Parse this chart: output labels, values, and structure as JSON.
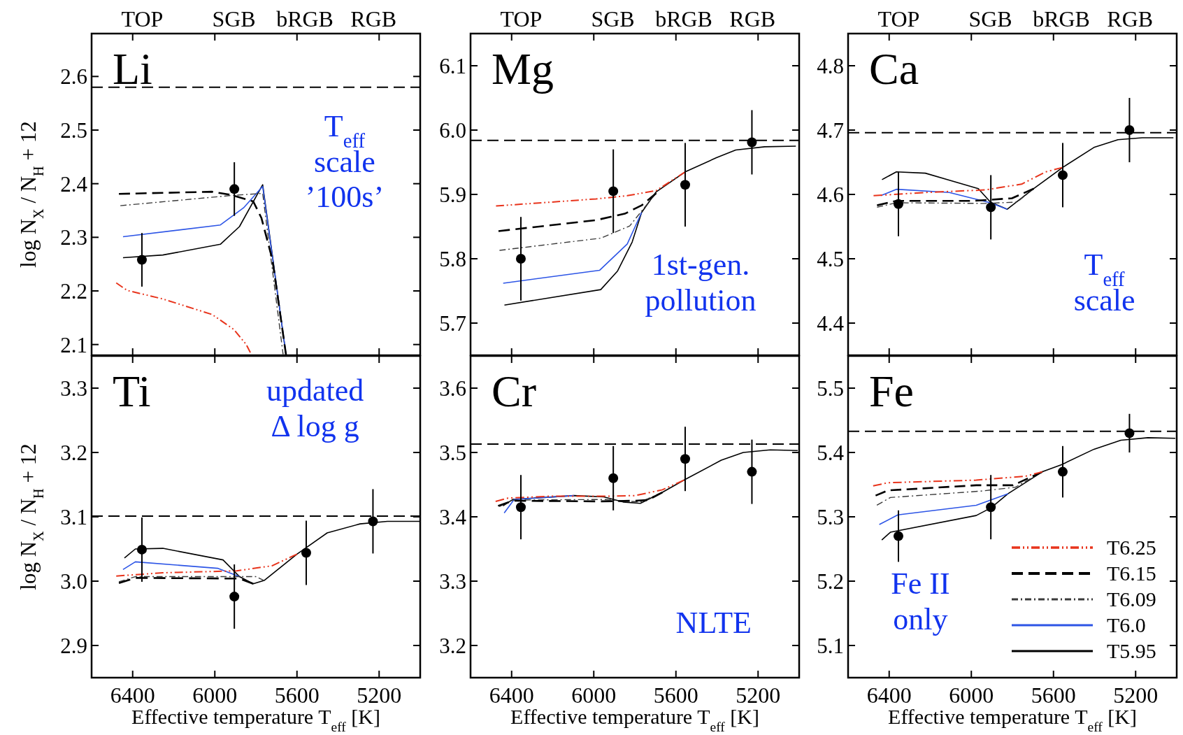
{
  "chart_data": [
    {
      "type": "line",
      "title": "Li",
      "annotations": [
        "T$_{eff}$\nscale\n’100s’",
        "TOP",
        "SGB",
        "bRGB",
        "RGB"
      ],
      "ylabel": "log N$_{X}$ / N$_{H}$ + 12",
      "xlim": [
        6600,
        5000
      ],
      "xticks": [
        6400,
        6000,
        5600,
        5200
      ],
      "ylim": [
        2.08,
        2.68
      ],
      "yticks": [
        2.1,
        2.2,
        2.3,
        2.4,
        2.5,
        2.6
      ],
      "tick_labels": "y",
      "legend": false,
      "ref_lines": [
        {
          "axis": "y",
          "value": 2.58,
          "color": "#000000",
          "line_style": "dashed"
        }
      ],
      "series": [
        {
          "color": "#e8341c",
          "line_style": "dashdotdot",
          "x": [
            6480,
            6427,
            6253,
            6013,
            5907,
            5847,
            5827
          ],
          "values": [
            2.215,
            2.201,
            2.185,
            2.156,
            2.128,
            2.1,
            2.085
          ]
        },
        {
          "color": "#000000",
          "line_style": "dashed",
          "x": [
            6467,
            6013,
            5920,
            5813,
            5773,
            5720,
            5653
          ],
          "values": [
            2.381,
            2.385,
            2.379,
            2.367,
            2.336,
            2.259,
            2.08
          ]
        },
        {
          "color": "#3a3a3a",
          "line_style": "dashdot",
          "x": [
            6460,
            5920,
            5767,
            5667
          ],
          "values": [
            2.359,
            2.378,
            2.382,
            2.08
          ]
        },
        {
          "color": "#2d55e6",
          "line_style": "solid",
          "x": [
            6447,
            5973,
            5860,
            5767,
            5653
          ],
          "values": [
            2.301,
            2.323,
            2.355,
            2.395,
            2.08
          ]
        },
        {
          "color": "#000000",
          "line_style": "solid",
          "x": [
            6447,
            6253,
            5973,
            5880,
            5767,
            5653
          ],
          "values": [
            2.262,
            2.267,
            2.287,
            2.32,
            2.398,
            2.08
          ]
        },
        {
          "type": "scatter",
          "color": "#000000",
          "marker": "circle",
          "x": [
            6355,
            5905
          ],
          "values": [
            2.258,
            2.39
          ],
          "errors": [
            0.05,
            0.05
          ]
        }
      ]
    },
    {
      "type": "line",
      "title": "Mg",
      "annotations": [
        "1st-gen.\npollution",
        "TOP",
        "SGB",
        "bRGB",
        "RGB"
      ],
      "xlim": [
        6600,
        5000
      ],
      "xticks": [
        6400,
        6000,
        5600,
        5200
      ],
      "ylim": [
        5.65,
        6.15
      ],
      "yticks": [
        5.7,
        5.8,
        5.9,
        {
          "value": 6,
          "label": "6.0"
        },
        6.1
      ],
      "tick_labels": "y",
      "legend": false,
      "ref_lines": [
        {
          "axis": "y",
          "value": 5.984,
          "color": "#000000",
          "line_style": "dashed"
        }
      ],
      "series": [
        {
          "color": "#e8341c",
          "line_style": "dashdotdot",
          "x": [
            6476,
            5989,
            5837,
            5696,
            5555
          ],
          "values": [
            5.882,
            5.893,
            5.898,
            5.906,
            5.935
          ]
        },
        {
          "color": "#000000",
          "line_style": "dashed",
          "x": [
            6464,
            5989,
            5849,
            5767,
            5696
          ],
          "values": [
            5.843,
            5.86,
            5.87,
            5.883,
            5.902
          ]
        },
        {
          "color": "#3a3a3a",
          "line_style": "dashdot",
          "x": [
            6459,
            5966,
            5825,
            5755,
            5696
          ],
          "values": [
            5.813,
            5.832,
            5.851,
            5.879,
            5.902
          ]
        },
        {
          "color": "#2d55e6",
          "line_style": "solid",
          "x": [
            6441,
            5972,
            5837,
            5767
          ],
          "values": [
            5.762,
            5.782,
            5.823,
            5.872
          ]
        },
        {
          "color": "#000000",
          "line_style": "solid",
          "x": [
            6435,
            5966,
            5884,
            5813,
            5767,
            5696,
            5555,
            5403,
            5309,
            5168,
            5016
          ],
          "values": [
            5.728,
            5.752,
            5.781,
            5.826,
            5.872,
            5.904,
            5.935,
            5.957,
            5.969,
            5.974,
            5.975
          ]
        },
        {
          "type": "scatter",
          "color": "#000000",
          "marker": "circle",
          "x": [
            6355,
            5905,
            5555,
            5230
          ],
          "values": [
            5.8,
            5.905,
            5.915,
            5.981
          ],
          "errors": [
            0.065,
            0.065,
            0.065,
            0.05
          ]
        }
      ]
    },
    {
      "type": "line",
      "title": "Ca",
      "annotations": [
        "T$_{eff}$\nscale",
        "TOP",
        "SGB",
        "bRGB",
        "RGB"
      ],
      "xlim": [
        6600,
        5000
      ],
      "xticks": [
        6400,
        6000,
        5600,
        5200
      ],
      "ylim": [
        4.35,
        4.85
      ],
      "yticks": [
        4.4,
        4.5,
        4.6,
        4.7,
        4.8
      ],
      "tick_labels": "y",
      "legend": false,
      "ref_lines": [
        {
          "axis": "y",
          "value": 4.696,
          "color": "#000000",
          "line_style": "dashed"
        }
      ],
      "series": [
        {
          "color": "#e8341c",
          "line_style": "dashdotdot",
          "x": [
            6476,
            6224,
            5931,
            5755,
            5638,
            5555
          ],
          "values": [
            4.598,
            4.603,
            4.607,
            4.616,
            4.635,
            4.642
          ]
        },
        {
          "color": "#000000",
          "line_style": "dashed",
          "x": [
            6459,
            6365,
            5989,
            5802,
            5696
          ],
          "values": [
            4.583,
            4.59,
            4.59,
            4.594,
            4.609
          ]
        },
        {
          "color": "#3a3a3a",
          "line_style": "dashdot",
          "x": [
            6459,
            6365,
            5931,
            5778,
            5696
          ],
          "values": [
            4.58,
            4.587,
            4.586,
            4.588,
            4.609
          ]
        },
        {
          "color": "#2d55e6",
          "line_style": "solid",
          "x": [
            6441,
            6365,
            6107,
            5907,
            5825
          ],
          "values": [
            4.598,
            4.608,
            4.603,
            4.587,
            4.577
          ]
        },
        {
          "color": "#000000",
          "line_style": "solid",
          "x": [
            6435,
            6365,
            6224,
            5966,
            5907,
            5825,
            5696,
            5555,
            5403,
            5286,
            5168,
            5016
          ],
          "values": [
            4.623,
            4.635,
            4.633,
            4.609,
            4.588,
            4.577,
            4.609,
            4.642,
            4.673,
            4.685,
            4.688,
            4.688
          ]
        },
        {
          "type": "scatter",
          "color": "#000000",
          "marker": "circle",
          "x": [
            6355,
            5905,
            5555,
            5230
          ],
          "values": [
            4.585,
            4.58,
            4.63,
            4.7
          ],
          "errors": [
            0.05,
            0.05,
            0.05,
            0.05
          ]
        }
      ]
    },
    {
      "type": "line",
      "title": "Ti",
      "annotations": [
        "updated\nΔ log g"
      ],
      "ylabel": "log N$_{X}$ / N$_{H}$ + 12",
      "xlabel": "Effective temperature T$_{eff}$ [K]",
      "xlim": [
        6600,
        5000
      ],
      "xticks": [
        6400,
        6000,
        5600,
        5200
      ],
      "ylim": [
        2.85,
        3.35
      ],
      "yticks": [
        2.9,
        {
          "value": 3,
          "label": "3.0"
        },
        3.1,
        3.2,
        3.3
      ],
      "legend": false,
      "ref_lines": [
        {
          "axis": "y",
          "value": 3.101,
          "color": "#000000",
          "line_style": "dashed"
        }
      ],
      "series": [
        {
          "color": "#e8341c",
          "line_style": "dashdotdot",
          "x": [
            6480,
            6253,
            5893,
            5720,
            5600
          ],
          "values": [
            3.008,
            3.013,
            3.016,
            3.024,
            3.042
          ]
        },
        {
          "color": "#000000",
          "line_style": "dashed",
          "x": [
            6467,
            6387,
            5880,
            5813
          ],
          "values": [
            2.997,
            3.005,
            3.004,
            2.996
          ]
        },
        {
          "color": "#3a3a3a",
          "line_style": "dashdot",
          "x": [
            6467,
            6387,
            5800,
            5760
          ],
          "values": [
            2.999,
            3.007,
            3.007,
            3.001
          ]
        },
        {
          "color": "#2d55e6",
          "line_style": "solid",
          "x": [
            6447,
            6387,
            5987,
            5880
          ],
          "values": [
            3.018,
            3.03,
            3.02,
            3.007
          ]
        },
        {
          "color": "#000000",
          "line_style": "solid",
          "x": [
            6440,
            6387,
            6253,
            5960,
            5880,
            5813,
            5760,
            5600,
            5453,
            5293,
            5160,
            5000
          ],
          "values": [
            3.036,
            3.05,
            3.051,
            3.033,
            3.007,
            2.996,
            3.001,
            3.042,
            3.075,
            3.089,
            3.093,
            3.093
          ]
        },
        {
          "type": "scatter",
          "color": "#000000",
          "marker": "circle",
          "x": [
            6355,
            5905,
            5555,
            5230
          ],
          "values": [
            3.049,
            2.976,
            3.044,
            3.093
          ],
          "errors": [
            0.05,
            0.05,
            0.05,
            0.05
          ]
        }
      ]
    },
    {
      "type": "line",
      "title": "Cr",
      "annotations": [
        "NLTE"
      ],
      "xlabel": "Effective temperature T$_{eff}$ [K]",
      "xlim": [
        6600,
        5000
      ],
      "xticks": [
        6400,
        6000,
        5600,
        5200
      ],
      "ylim": [
        3.15,
        3.65
      ],
      "yticks": [
        3.2,
        3.3,
        3.4,
        3.5,
        3.6
      ],
      "legend": false,
      "ref_lines": [
        {
          "axis": "y",
          "value": 3.513,
          "color": "#000000",
          "line_style": "dashed"
        }
      ],
      "series": [
        {
          "color": "#e8341c",
          "line_style": "dashdotdot",
          "x": [
            6478,
            6418,
            6215,
            5940,
            5797,
            5666,
            5561
          ],
          "values": [
            3.424,
            3.429,
            3.432,
            3.432,
            3.433,
            3.442,
            3.457
          ]
        },
        {
          "color": "#000000",
          "line_style": "dashed",
          "x": [
            6466,
            6394,
            5976,
            5797,
            5737,
            5666
          ],
          "values": [
            3.417,
            3.425,
            3.424,
            3.425,
            3.426,
            3.438
          ]
        },
        {
          "color": "#3a3a3a",
          "line_style": "dashdot",
          "x": [
            6460,
            6394,
            5952,
            5773,
            5666
          ],
          "values": [
            3.416,
            3.426,
            3.427,
            3.423,
            3.438
          ]
        },
        {
          "color": "#2d55e6",
          "line_style": "solid",
          "x": [
            6436,
            6388,
            6096
          ],
          "values": [
            3.406,
            3.427,
            3.433
          ]
        },
        {
          "color": "#000000",
          "line_style": "solid",
          "x": [
            6442,
            6394,
            6096,
            5952,
            5857,
            5773,
            5666,
            5561,
            5379,
            5272,
            5140,
            5007
          ],
          "values": [
            3.417,
            3.427,
            3.433,
            3.431,
            3.423,
            3.421,
            3.438,
            3.457,
            3.488,
            3.5,
            3.504,
            3.503
          ]
        },
        {
          "type": "scatter",
          "color": "#000000",
          "marker": "circle",
          "x": [
            6355,
            5905,
            5555,
            5230
          ],
          "values": [
            3.415,
            3.46,
            3.49,
            3.47
          ],
          "errors": [
            0.05,
            0.05,
            0.05,
            0.05
          ]
        }
      ]
    },
    {
      "type": "line",
      "title": "Fe",
      "annotations": [
        "Fe II\nonly"
      ],
      "xlabel": "Effective temperature T$_{eff}$ [K]",
      "xlim": [
        6600,
        5000
      ],
      "xticks": [
        6400,
        6000,
        5600,
        5200
      ],
      "ylim": [
        5.05,
        5.55
      ],
      "yticks": [
        5.1,
        5.2,
        5.3,
        5.4,
        5.5
      ],
      "legend": "bottom right",
      "ref_lines": [
        {
          "axis": "y",
          "value": 5.433,
          "color": "#000000",
          "line_style": "dashed"
        }
      ],
      "series": [
        {
          "name": "T6.25",
          "color": "#e8341c",
          "line_style": "dashdotdot",
          "x": [
            6478,
            6406,
            5976,
            5737,
            5654
          ],
          "values": [
            5.348,
            5.353,
            5.357,
            5.363,
            5.37
          ]
        },
        {
          "name": "T6.15",
          "color": "#000000",
          "line_style": "dashed",
          "x": [
            6466,
            6406,
            5976,
            5797,
            5654
          ],
          "values": [
            5.333,
            5.341,
            5.349,
            5.349,
            5.37
          ]
        },
        {
          "name": "T6.09",
          "color": "#3a3a3a",
          "line_style": "dashdot",
          "x": [
            6460,
            6394,
            5952,
            5785,
            5654
          ],
          "values": [
            5.318,
            5.33,
            5.34,
            5.346,
            5.37
          ]
        },
        {
          "name": "T6.0",
          "color": "#2d55e6",
          "line_style": "solid",
          "x": [
            6448,
            6358,
            5976,
            5821
          ],
          "values": [
            5.288,
            5.303,
            5.318,
            5.336
          ]
        },
        {
          "name": "T5.95",
          "color": "#000000",
          "line_style": "solid",
          "x": [
            6436,
            6394,
            5976,
            5904,
            5821,
            5654,
            5561,
            5403,
            5272,
            5140,
            5007
          ],
          "values": [
            5.264,
            5.276,
            5.302,
            5.314,
            5.336,
            5.37,
            5.381,
            5.405,
            5.419,
            5.423,
            5.422
          ]
        },
        {
          "type": "scatter",
          "color": "#000000",
          "marker": "circle",
          "x": [
            6355,
            5905,
            5555,
            5230
          ],
          "values": [
            5.27,
            5.315,
            5.37,
            5.43
          ],
          "errors": [
            0.04,
            0.05,
            0.04,
            0.03
          ]
        }
      ]
    }
  ]
}
